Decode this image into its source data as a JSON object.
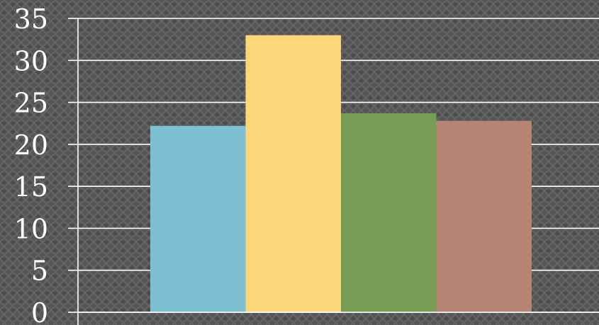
{
  "chart_data": {
    "type": "bar",
    "title": "",
    "xlabel": "",
    "ylabel": "",
    "categories": [
      "",
      "",
      "",
      ""
    ],
    "values": [
      22.2,
      33.0,
      23.7,
      22.8
    ],
    "colors": [
      "#7fbfd2",
      "#fad87a",
      "#779c56",
      "#b58472"
    ],
    "ylim": [
      0,
      35
    ],
    "yticks": [
      0,
      5,
      10,
      15,
      20,
      25,
      30,
      35
    ],
    "ytick_labels": [
      "0",
      "5",
      "10",
      "15",
      "20",
      "25",
      "30",
      "35"
    ],
    "grid": true,
    "legend": "none",
    "background": "#555555"
  }
}
